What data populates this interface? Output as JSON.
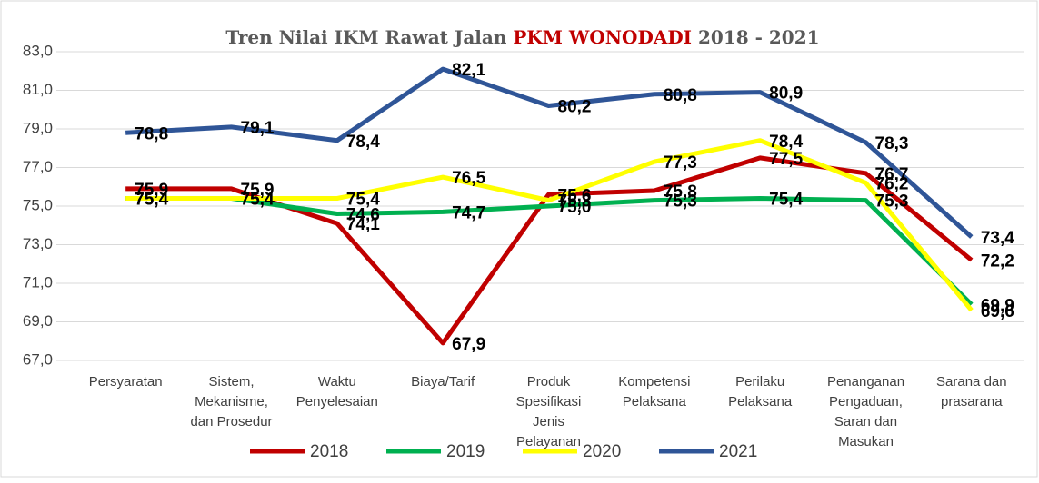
{
  "chart_data": {
    "type": "line",
    "title": [
      "Tren Nilai IKM Rawat Jalan",
      "PKM WONODADI",
      "2018 - 2021"
    ],
    "title_highlight_color": "#c00000",
    "categories": [
      "Persyaratan",
      "Sistem, Mekanisme, dan Prosedur",
      "Waktu Penyelesaian",
      "Biaya/Tarif",
      "Produk Spesifikasi Jenis Pelayanan",
      "Kompetensi Pelaksana",
      "Perilaku Pelaksana",
      "Penanganan Pengaduan, Saran dan Masukan",
      "Sarana dan prasarana"
    ],
    "series": [
      {
        "name": "2018",
        "color": "#c00000",
        "values": [
          75.9,
          75.9,
          74.1,
          67.9,
          75.6,
          75.8,
          77.5,
          76.7,
          72.2
        ],
        "value_labels": [
          "75,9",
          "75,9",
          "74,1",
          "67,9",
          "75,6",
          "75,8",
          "77,5",
          "76,7",
          "72,2"
        ]
      },
      {
        "name": "2019",
        "color": "#00b050",
        "values": [
          75.4,
          75.4,
          74.6,
          74.7,
          75.0,
          75.3,
          75.4,
          75.3,
          69.9
        ],
        "value_labels": [
          "75,4",
          "75,4",
          "74,6",
          "74,7",
          "75,0",
          "75,3",
          "75,4",
          "75,3",
          "69,9"
        ]
      },
      {
        "name": "2020",
        "color": "#ffff00",
        "values": [
          75.4,
          75.4,
          75.4,
          76.5,
          75.3,
          77.3,
          78.4,
          76.2,
          69.6
        ],
        "value_labels": [
          "75,4",
          "75,4",
          "75,4",
          "76,5",
          "75,3",
          "77,3",
          "78,4",
          "76,2",
          "69,6"
        ]
      },
      {
        "name": "2021",
        "color": "#2f5597",
        "values": [
          78.8,
          79.1,
          78.4,
          82.1,
          80.2,
          80.8,
          80.9,
          78.3,
          73.4
        ],
        "value_labels": [
          "78,8",
          "79,1",
          "78,4",
          "82,1",
          "80,2",
          "80,8",
          "80,9",
          "78,3",
          "73,4"
        ]
      }
    ],
    "ylim": [
      67,
      83
    ],
    "yticks": [
      {
        "value": 67,
        "label": "67,0"
      },
      {
        "value": 69,
        "label": "69,0"
      },
      {
        "value": 71,
        "label": "71,0"
      },
      {
        "value": 73,
        "label": "73,0"
      },
      {
        "value": 75,
        "label": "75,0"
      },
      {
        "value": 77,
        "label": "77,0"
      },
      {
        "value": 79,
        "label": "79,0"
      },
      {
        "value": 81,
        "label": "81,0"
      },
      {
        "value": 83,
        "label": "83,0"
      }
    ],
    "grid": true,
    "legend": "bottom"
  }
}
